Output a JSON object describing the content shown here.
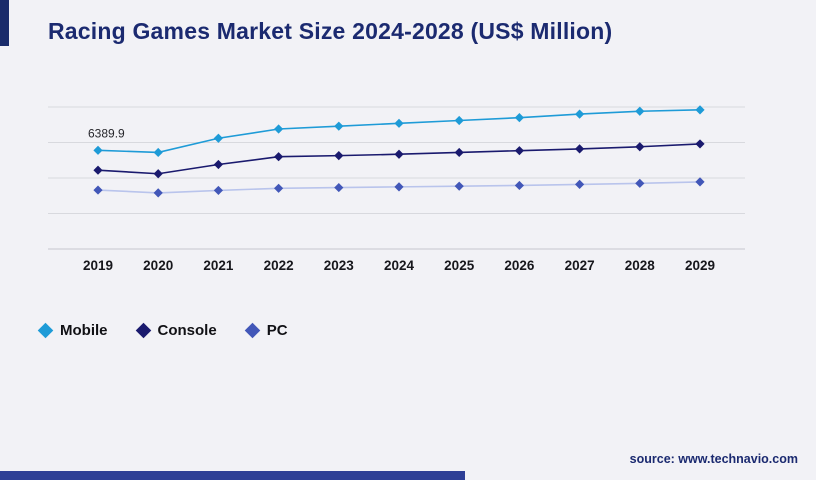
{
  "page": {
    "title": "Racing Games Market Size 2024-2028 (US$ Million)",
    "source": "source: www.technavio.com"
  },
  "colors": {
    "title": "#1b2a70",
    "accent_bar": "#1a2c6b",
    "bottom_bar": "#2e3f96",
    "grid": "#d8d9de",
    "axis": "#c6c7cd",
    "tick_label": "#17171c",
    "annotation": "#26262b",
    "source": "#1b2a70",
    "mobile": "#1e9bd7",
    "console": "#1a1a6e",
    "pc_line": "#b9c4ec",
    "pc_marker": "#4257b8"
  },
  "chart_data": {
    "type": "line",
    "title": "Racing Games Market Size 2024-2028 (US$ Million)",
    "x": [
      "2019",
      "2020",
      "2021",
      "2022",
      "2023",
      "2024",
      "2025",
      "2026",
      "2027",
      "2028",
      "2029"
    ],
    "series": [
      {
        "name": "Mobile",
        "color": "#1e9bd7",
        "marker": "#1e9bd7",
        "values": [
          6389.9,
          6360,
          6560,
          6690,
          6730,
          6770,
          6810,
          6850,
          6900,
          6940,
          6960
        ]
      },
      {
        "name": "Console",
        "color": "#1a1a6e",
        "marker": "#1a1a6e",
        "values": [
          6110,
          6060,
          6190,
          6300,
          6315,
          6335,
          6360,
          6385,
          6410,
          6440,
          6480
        ]
      },
      {
        "name": "PC",
        "color": "#b9c4ec",
        "marker": "#4257b8",
        "values": [
          5830,
          5790,
          5825,
          5855,
          5865,
          5875,
          5885,
          5895,
          5910,
          5925,
          5945
        ]
      }
    ],
    "annotation": {
      "text": "6389.9",
      "series_index": 0,
      "x_index": 0
    },
    "ylim": [
      5000,
      7000
    ],
    "gridline_count": 5,
    "grid": true,
    "y_axis_labels_visible": false,
    "legend_position": "bottom-left",
    "marker_shape": "diamond"
  }
}
